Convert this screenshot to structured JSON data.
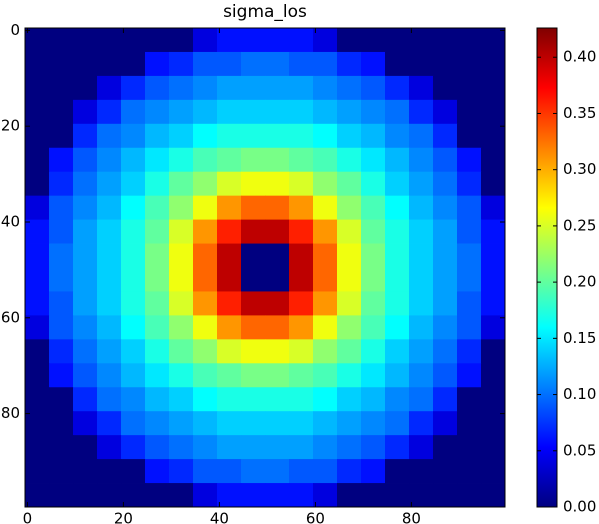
{
  "chart_data": {
    "type": "heatmap",
    "title": "sigma_los",
    "colormap": "jet",
    "xlim": [
      -0.5,
      99.5
    ],
    "ylim": [
      99.5,
      -0.5
    ],
    "xticks": [
      0,
      20,
      40,
      60,
      80
    ],
    "yticks": [
      0,
      20,
      40,
      60,
      80
    ],
    "clim": [
      0,
      0.426
    ],
    "cticks": [
      {
        "value": 0,
        "label": "0.00"
      },
      {
        "value": 0.05,
        "label": "0.05"
      },
      {
        "value": 0.1,
        "label": "0.10"
      },
      {
        "value": 0.15,
        "label": "0.15"
      },
      {
        "value": 0.2,
        "label": "0.20"
      },
      {
        "value": 0.25,
        "label": "0.25"
      },
      {
        "value": 0.3,
        "label": "0.30"
      },
      {
        "value": 0.35,
        "label": "0.35"
      },
      {
        "value": 0.4,
        "label": "0.40"
      }
    ],
    "z": [
      [
        0,
        0,
        0,
        0,
        0,
        0,
        0,
        0.04,
        0.06,
        0.06,
        0.06,
        0.06,
        0.04,
        0,
        0,
        0,
        0,
        0,
        0,
        0
      ],
      [
        0,
        0,
        0,
        0,
        0,
        0.06,
        0.07,
        0.09,
        0.09,
        0.1,
        0.1,
        0.09,
        0.09,
        0.07,
        0.06,
        0,
        0,
        0,
        0,
        0
      ],
      [
        0,
        0,
        0,
        0.04,
        0.07,
        0.09,
        0.1,
        0.11,
        0.12,
        0.12,
        0.12,
        0.12,
        0.11,
        0.1,
        0.09,
        0.07,
        0.04,
        0,
        0,
        0
      ],
      [
        0,
        0,
        0.04,
        0.07,
        0.1,
        0.11,
        0.12,
        0.13,
        0.14,
        0.14,
        0.14,
        0.14,
        0.13,
        0.12,
        0.11,
        0.1,
        0.07,
        0.04,
        0,
        0
      ],
      [
        0,
        0,
        0.07,
        0.1,
        0.11,
        0.13,
        0.14,
        0.16,
        0.17,
        0.17,
        0.17,
        0.17,
        0.16,
        0.14,
        0.13,
        0.11,
        0.1,
        0.07,
        0,
        0
      ],
      [
        0,
        0.06,
        0.09,
        0.11,
        0.13,
        0.15,
        0.17,
        0.19,
        0.2,
        0.21,
        0.21,
        0.2,
        0.19,
        0.17,
        0.15,
        0.13,
        0.11,
        0.09,
        0.06,
        0
      ],
      [
        0,
        0.07,
        0.1,
        0.12,
        0.14,
        0.17,
        0.2,
        0.22,
        0.25,
        0.26,
        0.26,
        0.25,
        0.22,
        0.2,
        0.17,
        0.14,
        0.12,
        0.1,
        0.07,
        0
      ],
      [
        0.04,
        0.09,
        0.11,
        0.13,
        0.16,
        0.19,
        0.22,
        0.26,
        0.31,
        0.33,
        0.33,
        0.31,
        0.26,
        0.22,
        0.19,
        0.16,
        0.13,
        0.11,
        0.09,
        0.04
      ],
      [
        0.06,
        0.09,
        0.12,
        0.14,
        0.17,
        0.2,
        0.25,
        0.31,
        0.36,
        0.4,
        0.4,
        0.36,
        0.31,
        0.25,
        0.2,
        0.17,
        0.14,
        0.12,
        0.09,
        0.06
      ],
      [
        0.06,
        0.1,
        0.12,
        0.14,
        0.17,
        0.21,
        0.26,
        0.33,
        0.4,
        0,
        0,
        0.4,
        0.33,
        0.26,
        0.21,
        0.17,
        0.14,
        0.12,
        0.1,
        0.06
      ],
      [
        0.06,
        0.1,
        0.12,
        0.14,
        0.17,
        0.21,
        0.26,
        0.33,
        0.4,
        0,
        0,
        0.4,
        0.33,
        0.26,
        0.21,
        0.17,
        0.14,
        0.12,
        0.1,
        0.06
      ],
      [
        0.06,
        0.09,
        0.12,
        0.14,
        0.17,
        0.2,
        0.25,
        0.31,
        0.36,
        0.4,
        0.4,
        0.36,
        0.31,
        0.25,
        0.2,
        0.17,
        0.14,
        0.12,
        0.09,
        0.06
      ],
      [
        0.04,
        0.09,
        0.11,
        0.13,
        0.16,
        0.19,
        0.22,
        0.26,
        0.31,
        0.33,
        0.33,
        0.31,
        0.26,
        0.22,
        0.19,
        0.16,
        0.13,
        0.11,
        0.09,
        0.04
      ],
      [
        0,
        0.07,
        0.1,
        0.12,
        0.14,
        0.17,
        0.2,
        0.22,
        0.25,
        0.26,
        0.26,
        0.25,
        0.22,
        0.2,
        0.17,
        0.14,
        0.12,
        0.1,
        0.07,
        0
      ],
      [
        0,
        0.06,
        0.09,
        0.11,
        0.13,
        0.15,
        0.17,
        0.19,
        0.2,
        0.21,
        0.21,
        0.2,
        0.19,
        0.17,
        0.15,
        0.13,
        0.11,
        0.09,
        0.06,
        0
      ],
      [
        0,
        0,
        0.07,
        0.1,
        0.11,
        0.13,
        0.14,
        0.16,
        0.17,
        0.17,
        0.17,
        0.17,
        0.16,
        0.14,
        0.13,
        0.11,
        0.1,
        0.07,
        0,
        0
      ],
      [
        0,
        0,
        0.04,
        0.07,
        0.1,
        0.11,
        0.12,
        0.13,
        0.14,
        0.14,
        0.14,
        0.14,
        0.13,
        0.12,
        0.11,
        0.1,
        0.07,
        0.04,
        0,
        0
      ],
      [
        0,
        0,
        0,
        0.04,
        0.07,
        0.09,
        0.1,
        0.11,
        0.12,
        0.12,
        0.12,
        0.12,
        0.11,
        0.1,
        0.09,
        0.07,
        0.04,
        0,
        0,
        0
      ],
      [
        0,
        0,
        0,
        0,
        0,
        0.06,
        0.07,
        0.09,
        0.09,
        0.1,
        0.1,
        0.09,
        0.09,
        0.07,
        0.06,
        0,
        0,
        0,
        0,
        0
      ],
      [
        0,
        0,
        0,
        0,
        0,
        0,
        0,
        0.04,
        0.06,
        0.06,
        0.06,
        0.06,
        0.04,
        0,
        0,
        0,
        0,
        0,
        0,
        0
      ]
    ]
  }
}
